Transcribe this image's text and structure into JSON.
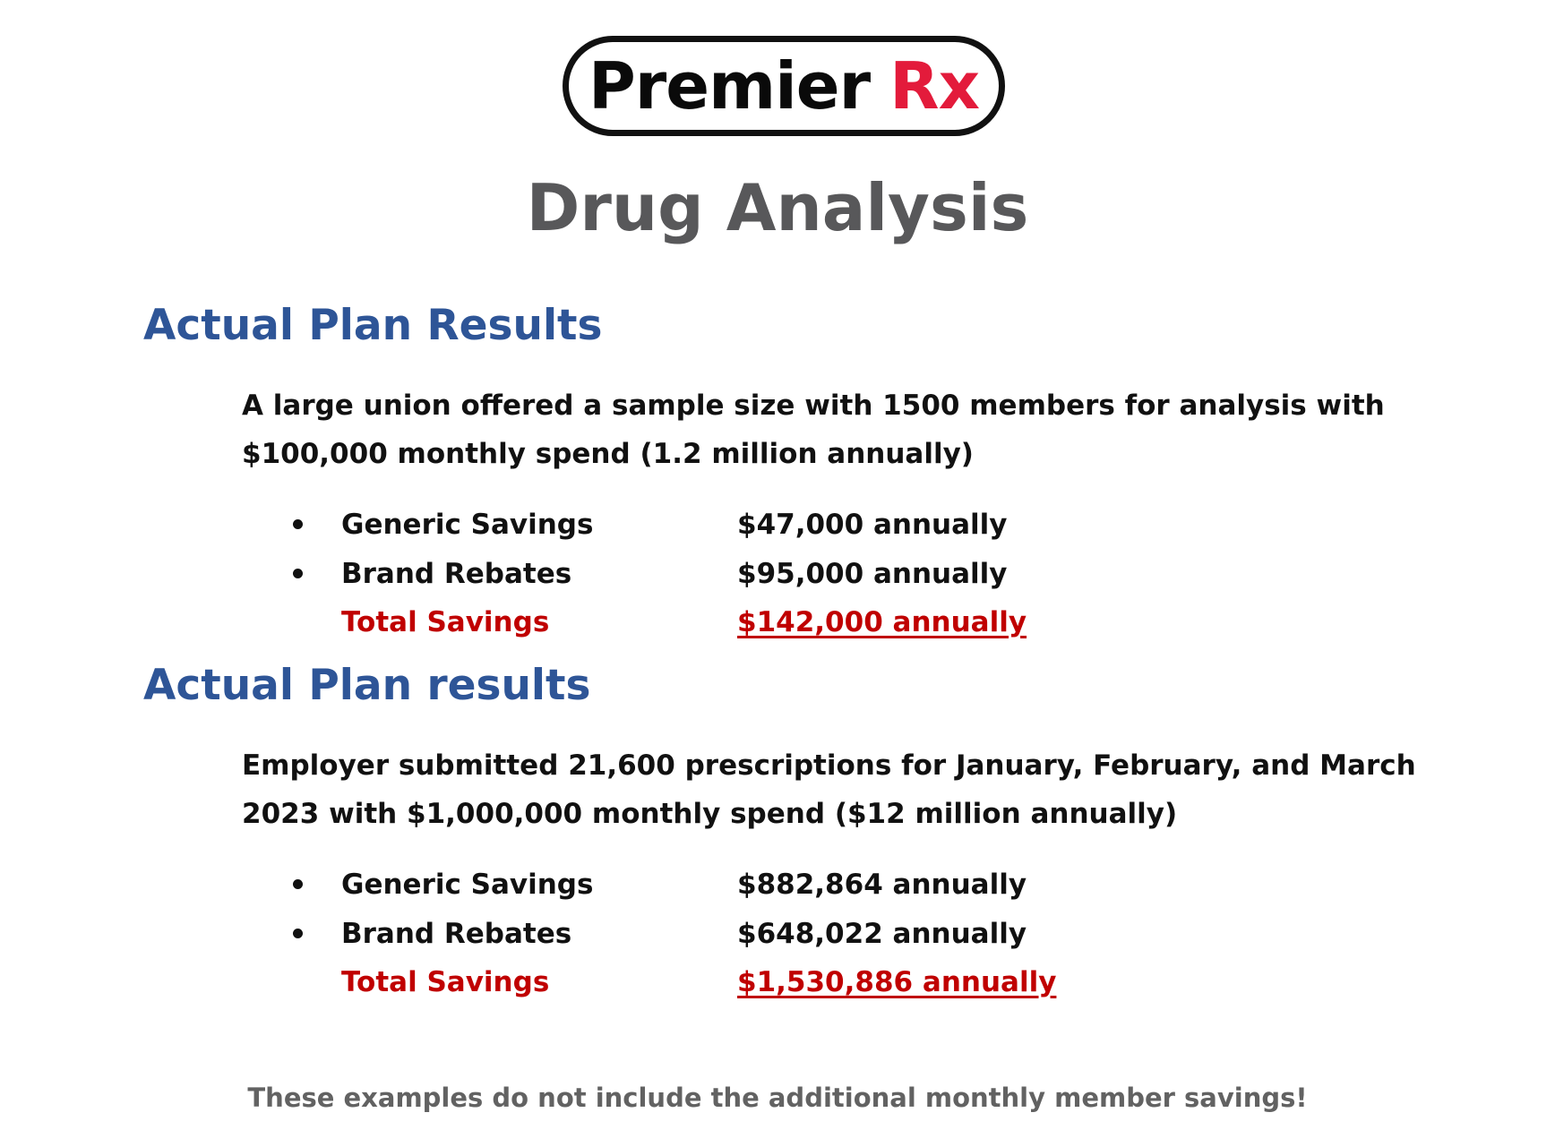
{
  "logo": {
    "brand": "Premier",
    "accent": "Rx",
    "accent_color": "#e31b3b"
  },
  "title": "Drug Analysis",
  "sections": [
    {
      "heading": "Actual Plan Results",
      "description": "A large union offered a sample size with 1500 members for analysis with $100,000 monthly spend (1.2 million annually)",
      "items": [
        {
          "label": "Generic Savings",
          "value": "$47,000 annually"
        },
        {
          "label": "Brand Rebates",
          "value": "$95,000 annually"
        }
      ],
      "total": {
        "label": "Total Savings",
        "value": "$142,000 annually"
      }
    },
    {
      "heading": "Actual Plan results",
      "description": "Employer submitted 21,600 prescriptions for January, February, and March 2023 with $1,000,000 monthly spend ($12 million annually)",
      "items": [
        {
          "label": "Generic Savings",
          "value": "$882,864 annually"
        },
        {
          "label": "Brand Rebates",
          "value": "$648,022 annually"
        }
      ],
      "total": {
        "label": "Total Savings",
        "value": "$1,530,886 annually"
      }
    }
  ],
  "footer_note": "These examples do not include the additional monthly member savings!",
  "colors": {
    "heading": "#2e5597",
    "total": "#c00000",
    "title": "#58585a"
  }
}
